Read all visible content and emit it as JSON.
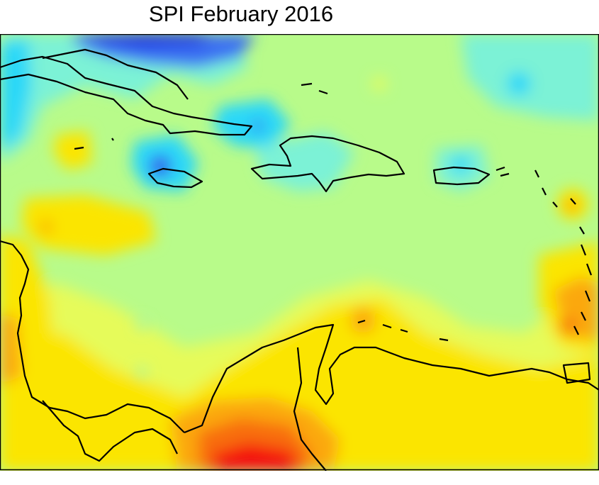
{
  "title": "SPI February 2016",
  "colors": {
    "deep_blue": "#1010e0",
    "blue": "#3a6ff2",
    "light_blue": "#2ad8f8",
    "cyan": "#7cf2d6",
    "light_green": "#b8fb8a",
    "yellow_green": "#e6fb5a",
    "yellow": "#fbe502",
    "orange": "#fba810",
    "dark_orange": "#f86d0c",
    "red": "#f41010"
  },
  "coastline_color": "#000000"
}
